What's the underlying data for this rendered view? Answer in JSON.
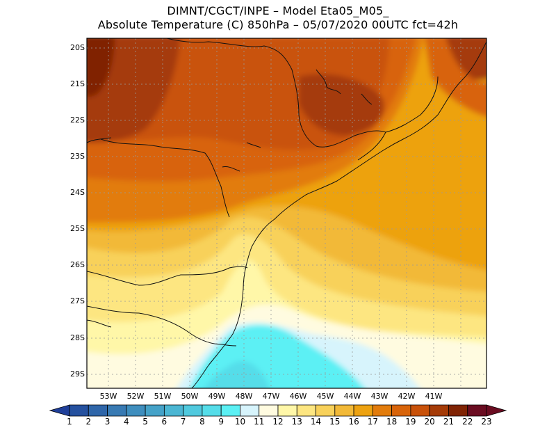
{
  "header": {
    "line1": "DIMNT/CGCT/INPE –  Model Eta05_M05_",
    "line2": "Absolute Temperature (C) 850hPa –  05/07/2020 00UTC fct=42h"
  },
  "map": {
    "lat_labels": [
      "20S",
      "21S",
      "22S",
      "23S",
      "24S",
      "25S",
      "26S",
      "27S",
      "28S",
      "29S"
    ],
    "lon_labels": [
      "53W",
      "52W",
      "51W",
      "50W",
      "49W",
      "48W",
      "47W",
      "46W",
      "45W",
      "44W",
      "43W",
      "42W",
      "41W"
    ]
  },
  "colorbar": {
    "labels": [
      "1",
      "2",
      "3",
      "4",
      "5",
      "6",
      "7",
      "8",
      "9",
      "10",
      "11",
      "12",
      "13",
      "14",
      "15",
      "16",
      "17",
      "18",
      "19",
      "20",
      "21",
      "22",
      "23"
    ],
    "colors": [
      "#1f3f99",
      "#25519f",
      "#2f66a9",
      "#387ab3",
      "#3f8ebe",
      "#45a2c8",
      "#4bb6d3",
      "#50c9de",
      "#55dde9",
      "#5bf0f4",
      "#d7f4fc",
      "#fffbe0",
      "#fff7a8",
      "#fde681",
      "#f8d15a",
      "#f2b937",
      "#eda211",
      "#e27c0c",
      "#d8640a",
      "#c9520a",
      "#a53b07",
      "#802404",
      "#6a0c21"
    ]
  }
}
